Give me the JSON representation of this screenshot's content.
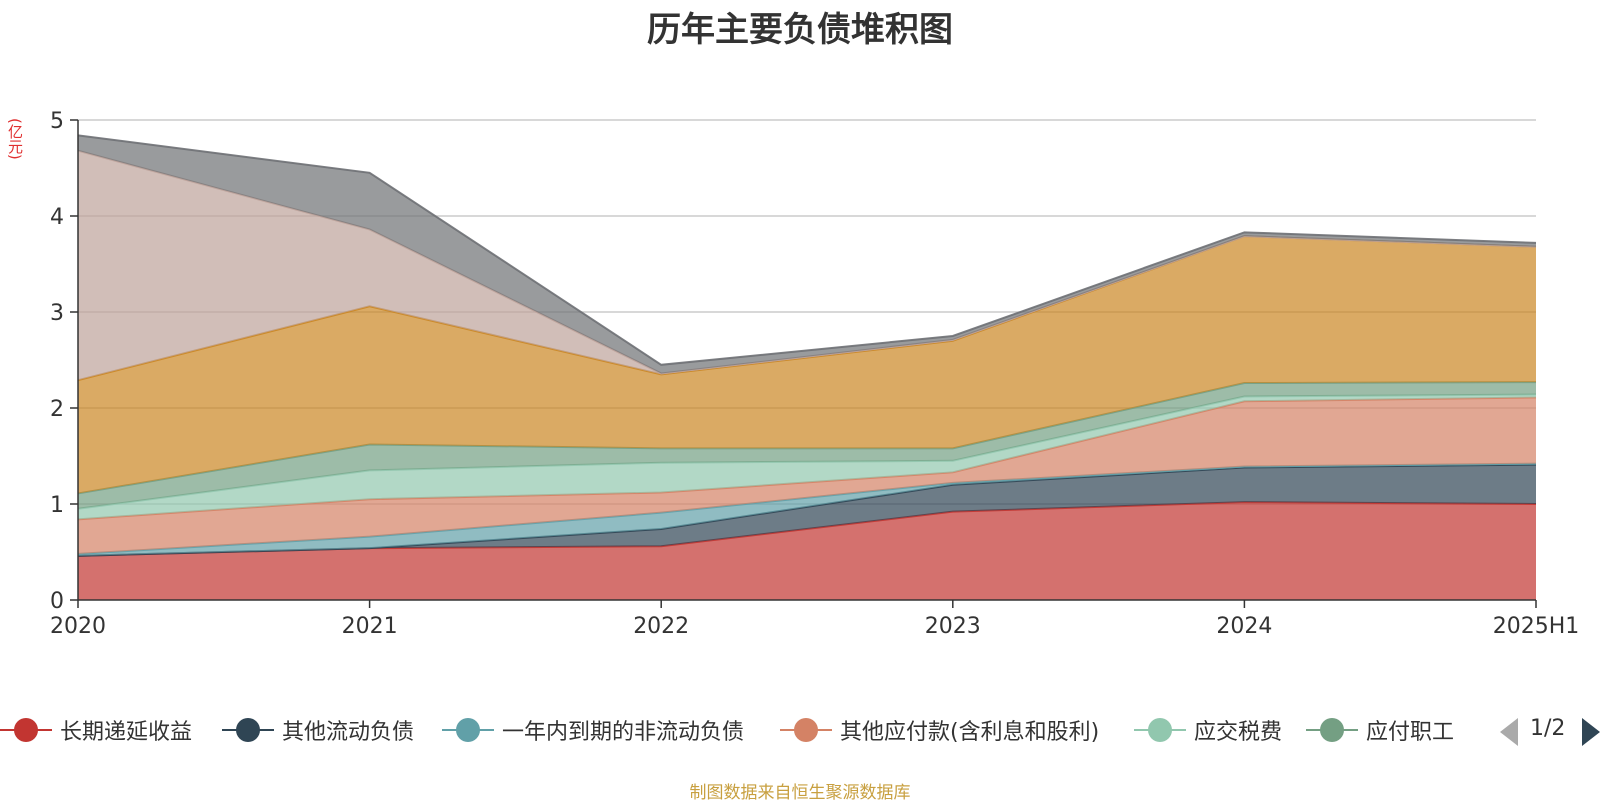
{
  "chart_data": {
    "type": "area",
    "stacked": true,
    "title": "历年主要负债堆积图",
    "unit_label": "(亿元)",
    "categories": [
      "2020",
      "2021",
      "2022",
      "2023",
      "2024",
      "2025H1"
    ],
    "ylim": [
      0,
      5
    ],
    "yticks": [
      0,
      1,
      2,
      3,
      4,
      5
    ],
    "grid": true,
    "legend_position": "bottom",
    "series": [
      {
        "name": "长期递延收益",
        "color": "#c23531",
        "values": [
          0.46,
          0.54,
          0.56,
          0.92,
          1.02,
          1.0
        ]
      },
      {
        "name": "其他流动负债",
        "color": "#2f4554",
        "values": [
          0.0,
          0.0,
          0.18,
          0.28,
          0.36,
          0.41
        ]
      },
      {
        "name": "一年内到期的非流动负债",
        "color": "#61a0a8",
        "values": [
          0.02,
          0.12,
          0.17,
          0.02,
          0.01,
          0.01
        ]
      },
      {
        "name": "其他应付款(含利息和股利)",
        "color": "#d48265",
        "values": [
          0.36,
          0.39,
          0.21,
          0.11,
          0.68,
          0.69
        ]
      },
      {
        "name": "应交税费",
        "color": "#91c7ae",
        "values": [
          0.11,
          0.3,
          0.31,
          0.12,
          0.05,
          0.03
        ]
      },
      {
        "name": "应付职工",
        "color": "#749f83",
        "values": [
          0.16,
          0.27,
          0.15,
          0.13,
          0.14,
          0.13
        ]
      },
      {
        "name": "",
        "color": "#ca8622",
        "values": [
          1.18,
          1.44,
          0.77,
          1.12,
          1.53,
          1.41
        ]
      },
      {
        "name": "",
        "color": "#bda29a",
        "values": [
          2.39,
          0.8,
          0.01,
          0.01,
          0.0,
          0.0
        ]
      },
      {
        "name": "",
        "color": "#6e7074",
        "values": [
          0.16,
          0.59,
          0.09,
          0.04,
          0.04,
          0.04
        ]
      }
    ]
  },
  "legend": {
    "visible": [
      {
        "label": "长期递延收益",
        "color": "#c23531"
      },
      {
        "label": "其他流动负债",
        "color": "#2f4554"
      },
      {
        "label": "一年内到期的非流动负债",
        "color": "#61a0a8"
      },
      {
        "label": "其他应付款(含利息和股利)",
        "color": "#d48265"
      },
      {
        "label": "应交税费",
        "color": "#91c7ae"
      },
      {
        "label": "应付职工",
        "color": "#749f83"
      }
    ],
    "page_indicator": "1/2"
  },
  "source_note": "制图数据来自恒生聚源数据库"
}
